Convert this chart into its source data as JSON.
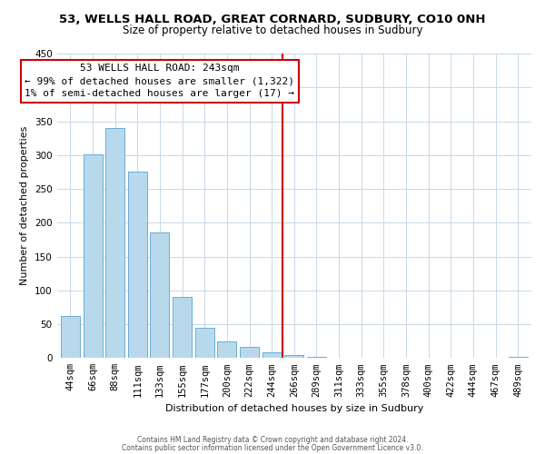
{
  "title": "53, WELLS HALL ROAD, GREAT CORNARD, SUDBURY, CO10 0NH",
  "subtitle": "Size of property relative to detached houses in Sudbury",
  "xlabel": "Distribution of detached houses by size in Sudbury",
  "ylabel": "Number of detached properties",
  "bar_labels": [
    "44sqm",
    "66sqm",
    "88sqm",
    "111sqm",
    "133sqm",
    "155sqm",
    "177sqm",
    "200sqm",
    "222sqm",
    "244sqm",
    "266sqm",
    "289sqm",
    "311sqm",
    "333sqm",
    "355sqm",
    "378sqm",
    "400sqm",
    "422sqm",
    "444sqm",
    "467sqm",
    "489sqm"
  ],
  "bar_values": [
    62,
    301,
    340,
    275,
    185,
    90,
    45,
    24,
    16,
    8,
    4,
    2,
    1,
    1,
    1,
    0,
    0,
    0,
    0,
    0,
    2
  ],
  "bar_color": "#b8d9ec",
  "bar_edge_color": "#6aadd5",
  "vline_color": "#cc0000",
  "annotation_title": "53 WELLS HALL ROAD: 243sqm",
  "annotation_line1": "← 99% of detached houses are smaller (1,322)",
  "annotation_line2": "1% of semi-detached houses are larger (17) →",
  "annotation_box_color": "#ffffff",
  "annotation_box_edge": "#cc0000",
  "ylim": [
    0,
    450
  ],
  "yticks": [
    0,
    50,
    100,
    150,
    200,
    250,
    300,
    350,
    400,
    450
  ],
  "footnote1": "Contains HM Land Registry data © Crown copyright and database right 2024.",
  "footnote2": "Contains public sector information licensed under the Open Government Licence v3.0.",
  "bg_color": "#ffffff",
  "grid_color": "#c8d8e8",
  "title_fontsize": 9.5,
  "subtitle_fontsize": 8.5,
  "xlabel_fontsize": 8,
  "ylabel_fontsize": 8,
  "tick_fontsize": 7.5,
  "annotation_fontsize": 8
}
